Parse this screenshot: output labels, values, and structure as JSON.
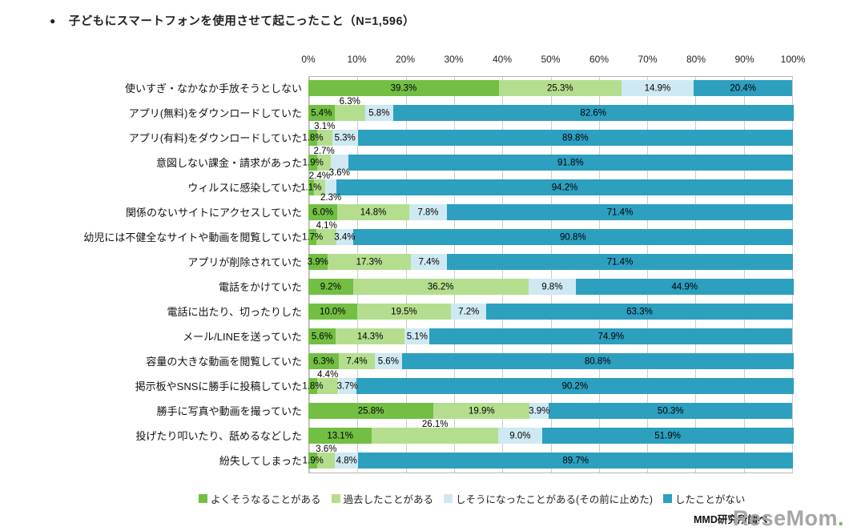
{
  "bullet": "●",
  "source": "MMD研究所調べ",
  "watermark": {
    "text": "ReseMom",
    "dot": "."
  },
  "chart_data": {
    "type": "bar",
    "stacked": true,
    "orientation": "horizontal",
    "title": "子どもにスマートフォンを使用させて起こったこと（N=1,596）",
    "xlabel": "",
    "ylabel": "",
    "legend_position": "bottom",
    "x_axis": {
      "min": 0,
      "max": 100,
      "grid": true,
      "ticks": [
        "0%",
        "10%",
        "20%",
        "30%",
        "40%",
        "50%",
        "60%",
        "70%",
        "80%",
        "90%",
        "100%"
      ]
    },
    "series": [
      {
        "name": "よくそうなることがある",
        "color": "#72bf44"
      },
      {
        "name": "過去したことがある",
        "color": "#b4de8e"
      },
      {
        "name": "しそうになったことがある(その前に止めた)",
        "color": "#cfe9f3"
      },
      {
        "name": "したことがない",
        "color": "#2d9fbf"
      }
    ],
    "rows": [
      {
        "category": "使いすぎ・なかなか手放そうとしない",
        "values": [
          39.3,
          25.3,
          14.9,
          20.4
        ],
        "label_pos": [
          "c",
          "c",
          "c",
          "c"
        ]
      },
      {
        "category": "アプリ(無料)をダウンロードしていた",
        "values": [
          5.4,
          6.3,
          5.8,
          82.6
        ],
        "label_pos": [
          "c",
          "a",
          "c",
          "c"
        ]
      },
      {
        "category": "アプリ(有料)をダウンロードしていた",
        "values": [
          1.8,
          3.1,
          5.3,
          89.8
        ],
        "label_pos": [
          "c",
          "a",
          "c",
          "c"
        ]
      },
      {
        "category": "意図しない課金・請求があった",
        "values": [
          1.9,
          2.7,
          3.6,
          91.8
        ],
        "label_pos": [
          "c",
          "a",
          "b",
          "c"
        ]
      },
      {
        "category": "ウィルスに感染していた",
        "values": [
          1.1,
          2.4,
          2.3,
          94.2
        ],
        "label_pos": [
          "c",
          "a",
          "b",
          "c"
        ]
      },
      {
        "category": "関係のないサイトにアクセスしていた",
        "values": [
          6.0,
          14.8,
          7.8,
          71.4
        ],
        "label_pos": [
          "c",
          "c",
          "c",
          "c"
        ]
      },
      {
        "category": "幼児には不健全なサイトや動画を閲覧していた",
        "values": [
          1.7,
          4.1,
          3.4,
          90.8
        ],
        "label_pos": [
          "c",
          "a",
          "c",
          "c"
        ]
      },
      {
        "category": "アプリが削除されていた",
        "values": [
          3.9,
          17.3,
          7.4,
          71.4
        ],
        "label_pos": [
          "c",
          "c",
          "c",
          "c"
        ]
      },
      {
        "category": "電話をかけていた",
        "values": [
          9.2,
          36.2,
          9.8,
          44.9
        ],
        "label_pos": [
          "c",
          "c",
          "c",
          "c"
        ]
      },
      {
        "category": "電話に出たり、切ったりした",
        "values": [
          10.0,
          19.5,
          7.2,
          63.3
        ],
        "label_pos": [
          "c",
          "c",
          "c",
          "c"
        ]
      },
      {
        "category": "メール/LINEを送っていた",
        "values": [
          5.6,
          14.3,
          5.1,
          74.9
        ],
        "label_pos": [
          "c",
          "c",
          "c",
          "c"
        ]
      },
      {
        "category": "容量の大きな動画を閲覧していた",
        "values": [
          6.3,
          7.4,
          5.6,
          80.8
        ],
        "label_pos": [
          "c",
          "c",
          "c",
          "c"
        ]
      },
      {
        "category": "掲示板やSNSに勝手に投稿していた",
        "values": [
          1.8,
          4.4,
          3.7,
          90.2
        ],
        "label_pos": [
          "c",
          "a",
          "c",
          "c"
        ]
      },
      {
        "category": "勝手に写真や動画を撮っていた",
        "values": [
          25.8,
          19.9,
          3.9,
          50.3
        ],
        "label_pos": [
          "c",
          "c",
          "c",
          "c"
        ]
      },
      {
        "category": "投げたり叩いたり、舐めるなどした",
        "values": [
          13.1,
          26.1,
          9.0,
          51.9
        ],
        "label_pos": [
          "c",
          "a",
          "c",
          "c"
        ]
      },
      {
        "category": "紛失してしまった",
        "values": [
          1.9,
          3.6,
          4.8,
          89.7
        ],
        "label_pos": [
          "c",
          "a",
          "c",
          "c"
        ]
      }
    ]
  }
}
